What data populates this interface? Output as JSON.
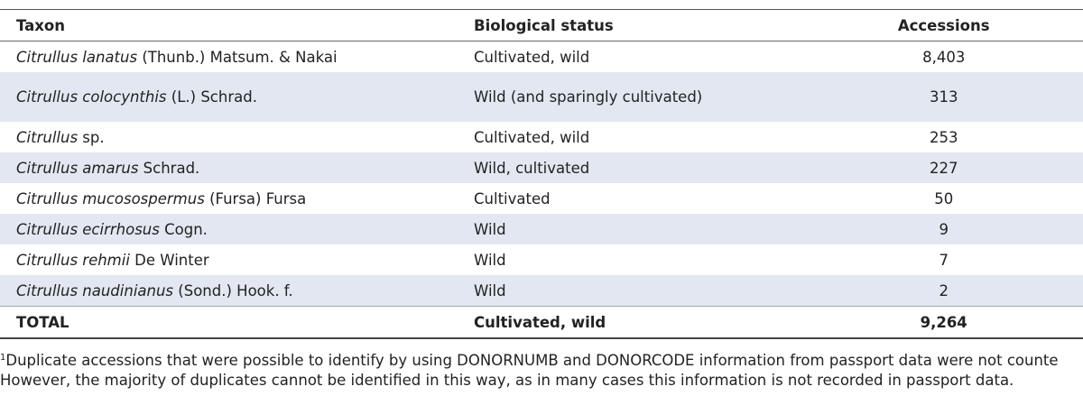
{
  "table": {
    "header": {
      "taxon": "Taxon",
      "status": "Biological status",
      "accessions": "Accessions"
    },
    "rows": [
      {
        "taxon_italic": "Citrullus lanatus",
        "taxon_rest": "(Thunb.) Matsum. & Nakai",
        "status": "Cultivated, wild",
        "accessions": "8,403"
      },
      {
        "taxon_italic": "Citrullus colocynthis",
        "taxon_rest": "(L.) Schrad.",
        "status": "Wild (and sparingly cultivated)",
        "accessions": "313"
      },
      {
        "taxon_italic": "Citrullus",
        "taxon_rest": "sp.",
        "status": "Cultivated, wild",
        "accessions": "253"
      },
      {
        "taxon_italic": "Citrullus amarus",
        "taxon_rest": "Schrad.",
        "status": "Wild, cultivated",
        "accessions": "227"
      },
      {
        "taxon_italic": "Citrullus mucosospermus",
        "taxon_rest": "(Fursa) Fursa",
        "status": "Cultivated",
        "accessions": "50"
      },
      {
        "taxon_italic": "Citrullus ecirrhosus",
        "taxon_rest": "Cogn.",
        "status": "Wild",
        "accessions": "9"
      },
      {
        "taxon_italic": "Citrullus rehmii",
        "taxon_rest": "De Winter",
        "status": "Wild",
        "accessions": "7"
      },
      {
        "taxon_italic": "Citrullus naudinianus",
        "taxon_rest": "(Sond.) Hook. f.",
        "status": "Wild",
        "accessions": "2"
      }
    ],
    "total": {
      "taxon": "TOTAL",
      "status": "Cultivated, wild",
      "accessions": "9,264"
    }
  },
  "footnote": {
    "marker": "1",
    "lines": [
      "Duplicate accessions that were possible to identify by using DONORNUMB and DONORCODE information from passport data were not counte",
      "However, the majority of duplicates cannot be identified in this way, as in many cases this information is not recorded in passport data."
    ]
  }
}
